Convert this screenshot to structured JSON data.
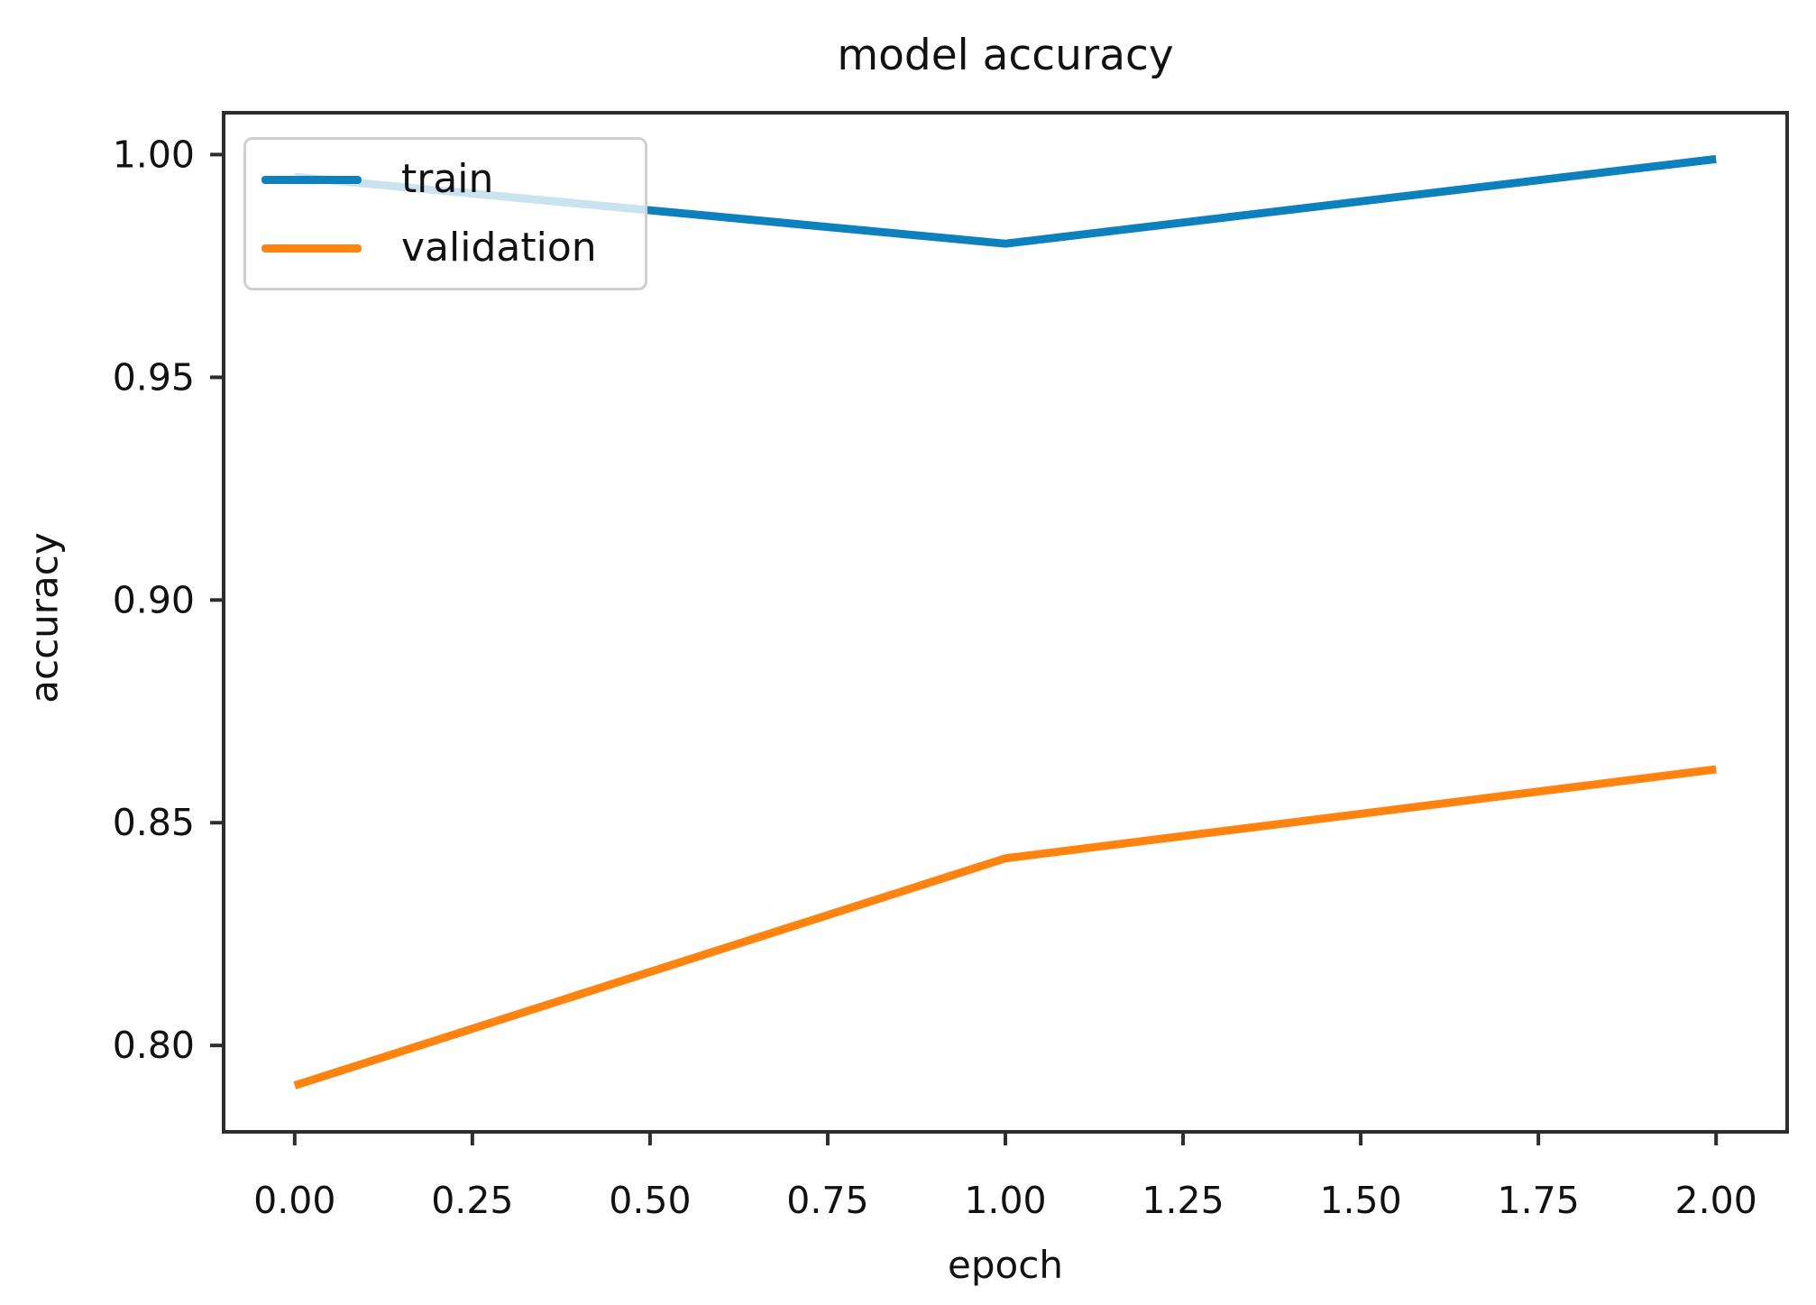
{
  "title": "model accuracy",
  "axes": {
    "xlabel": "epoch",
    "ylabel": "accuracy"
  },
  "legend": {
    "items": [
      {
        "label": "train",
        "color": "#0d81be"
      },
      {
        "label": "validation",
        "color": "#ff830f"
      }
    ]
  },
  "colors": {
    "axis": "#2d2d2d",
    "text": "#111111",
    "legend_border": "#cfcfcf",
    "background": "#ffffff"
  },
  "chart_data": {
    "type": "line",
    "title": "model accuracy",
    "xlabel": "epoch",
    "ylabel": "accuracy",
    "x": [
      0,
      1,
      2
    ],
    "series": [
      {
        "name": "train",
        "color": "#0d81be",
        "values": [
          0.995,
          0.98,
          0.999
        ]
      },
      {
        "name": "validation",
        "color": "#ff830f",
        "values": [
          0.791,
          0.842,
          0.862
        ]
      }
    ],
    "xlim": [
      -0.1,
      2.1
    ],
    "ylim": [
      0.7806,
      1.0094
    ],
    "xticks": [
      0.0,
      0.25,
      0.5,
      0.75,
      1.0,
      1.25,
      1.5,
      1.75,
      2.0
    ],
    "xtick_labels": [
      "0.00",
      "0.25",
      "0.50",
      "0.75",
      "1.00",
      "1.25",
      "1.50",
      "1.75",
      "2.00"
    ],
    "yticks": [
      0.8,
      0.85,
      0.9,
      0.95,
      1.0
    ],
    "ytick_labels": [
      "0.80",
      "0.85",
      "0.90",
      "0.95",
      "1.00"
    ],
    "grid": false,
    "legend_position": "upper-left"
  }
}
